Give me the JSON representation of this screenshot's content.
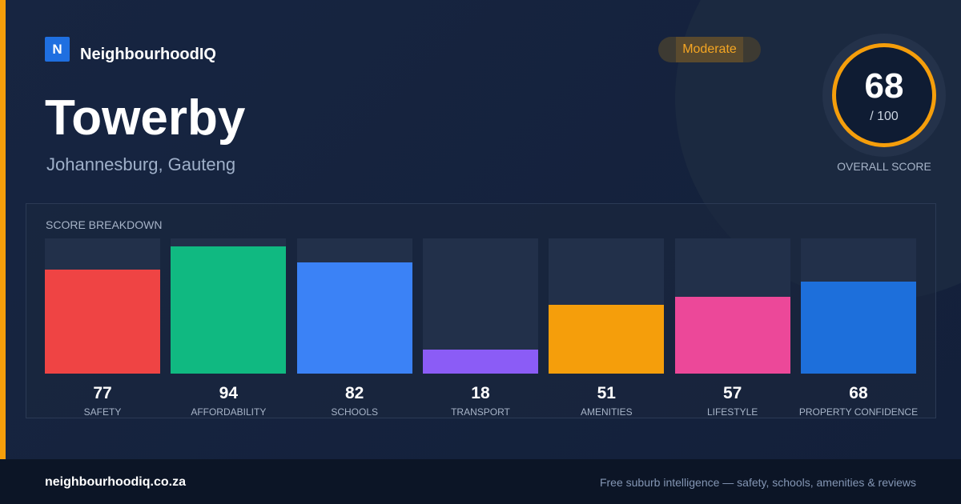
{
  "brand": {
    "logo_letter": "N",
    "name": "NeighbourhoodIQ",
    "logo_color": "#1f6fe0"
  },
  "suburb": {
    "name": "Towerby",
    "location": "Johannesburg, Gauteng"
  },
  "rating_badge": {
    "label": "Moderate",
    "color": "#f5a623"
  },
  "overall": {
    "score": "68",
    "max_label": "/ 100",
    "caption": "OVERALL SCORE",
    "ring_color": "#f59e0b"
  },
  "chart_data": {
    "type": "bar",
    "title": "SCORE BREAKDOWN",
    "ylim": [
      0,
      100
    ],
    "categories": [
      "SAFETY",
      "AFFORDABILITY",
      "SCHOOLS",
      "TRANSPORT",
      "AMENITIES",
      "LIFESTYLE",
      "PROPERTY CONFIDENCE"
    ],
    "values": [
      77,
      94,
      82,
      18,
      51,
      57,
      68
    ],
    "colors": [
      "#ef4444",
      "#10b981",
      "#3b82f6",
      "#8b5cf6",
      "#f59e0b",
      "#ec4899",
      "#1d6fdb"
    ],
    "grid": false,
    "legend": "none"
  },
  "footer": {
    "domain": "neighbourhoodiq.co.za",
    "tagline": "Free suburb intelligence — safety, schools, amenities & reviews"
  }
}
